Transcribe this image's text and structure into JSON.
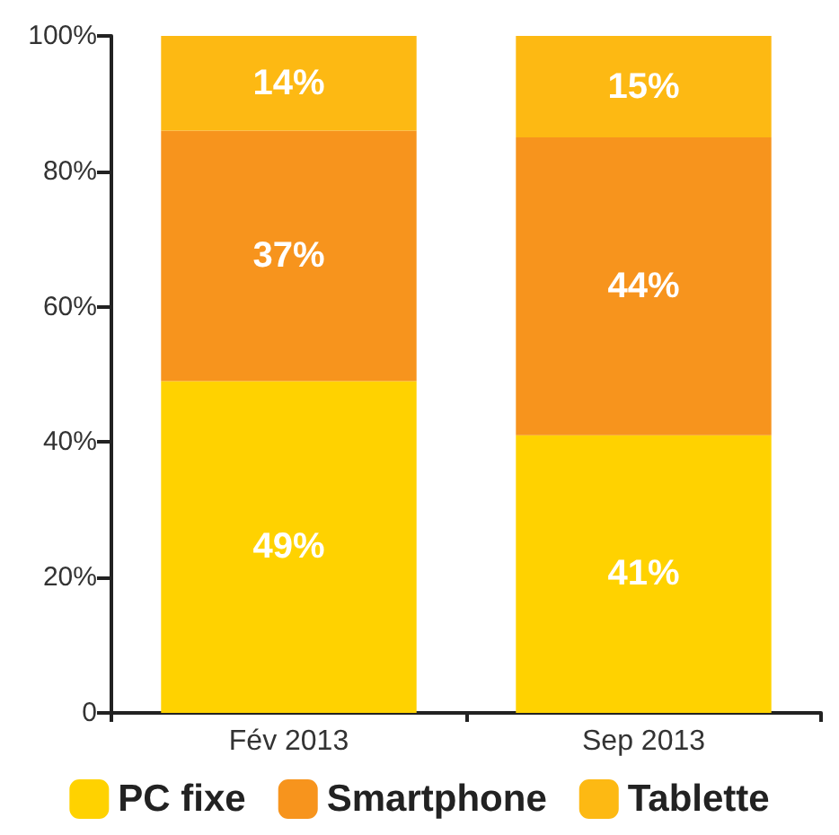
{
  "chart_data": {
    "type": "bar",
    "stacked": true,
    "categories": [
      "Fév 2013",
      "Sep 2013"
    ],
    "series": [
      {
        "name": "PC fixe",
        "color": "#ffd200",
        "values": [
          49,
          41
        ],
        "value_labels": [
          "49%",
          "41%"
        ]
      },
      {
        "name": "Smartphone",
        "color": "#f7941d",
        "values": [
          37,
          44
        ],
        "value_labels": [
          "37%",
          "44%"
        ]
      },
      {
        "name": "Tablette",
        "color": "#fdb913",
        "values": [
          14,
          15
        ],
        "value_labels": [
          "14%",
          "15%"
        ]
      }
    ],
    "ylim": [
      0,
      100
    ],
    "yticks": [
      {
        "value": 0,
        "label": "0"
      },
      {
        "value": 20,
        "label": "20%"
      },
      {
        "value": 40,
        "label": "40%"
      },
      {
        "value": 60,
        "label": "60%"
      },
      {
        "value": 80,
        "label": "80%"
      },
      {
        "value": 100,
        "label": "100%"
      }
    ],
    "grid": false,
    "legend": "bottom"
  }
}
